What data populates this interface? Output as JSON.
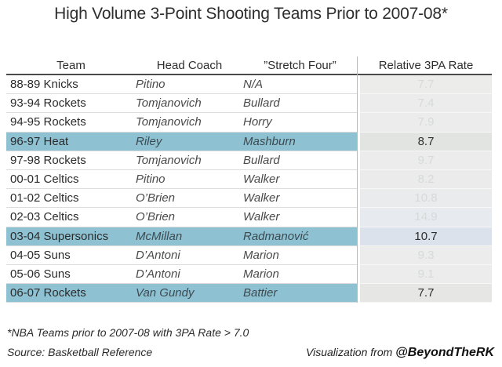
{
  "title": "High Volume 3-Point Shooting Teams Prior to 2007-08*",
  "chart_data": {
    "type": "table",
    "title": "High Volume 3-Point Shooting Teams Prior to 2007-08*",
    "columns": [
      "Team",
      "Head Coach",
      "”Stretch Four”",
      "Relative 3PA Rate"
    ],
    "rows": [
      {
        "team": "88-89 Knicks",
        "coach": "Pitino",
        "stretch_four": "N/A",
        "rate": "7.7",
        "highlighted": false,
        "rate_bg": "#ecedeb"
      },
      {
        "team": "93-94 Rockets",
        "coach": "Tomjanovich",
        "stretch_four": "Bullard",
        "rate": "7.4",
        "highlighted": false,
        "rate_bg": "#ebeceb"
      },
      {
        "team": "94-95 Rockets",
        "coach": "Tomjanovich",
        "stretch_four": "Horry",
        "rate": "7.9",
        "highlighted": false,
        "rate_bg": "#ebeceb"
      },
      {
        "team": "96-97 Heat",
        "coach": "Riley",
        "stretch_four": "Mashburn",
        "rate": "8.7",
        "highlighted": true,
        "rate_bg": "#e2e4e2"
      },
      {
        "team": "97-98 Rockets",
        "coach": "Tomjanovich",
        "stretch_four": "Bullard",
        "rate": "9.7",
        "highlighted": false,
        "rate_bg": "#ebeceb"
      },
      {
        "team": "00-01 Celtics",
        "coach": "Pitino",
        "stretch_four": "Walker",
        "rate": "8.2",
        "highlighted": false,
        "rate_bg": "#eaebea"
      },
      {
        "team": "01-02 Celtics",
        "coach": "O’Brien",
        "stretch_four": "Walker",
        "rate": "10.8",
        "highlighted": false,
        "rate_bg": "#eaebec"
      },
      {
        "team": "02-03 Celtics",
        "coach": "O’Brien",
        "stretch_four": "Walker",
        "rate": "14.9",
        "highlighted": false,
        "rate_bg": "#e7eaee"
      },
      {
        "team": "03-04 Supersonics",
        "coach": "McMillan",
        "stretch_four": "Radmanović",
        "rate": "10.7",
        "highlighted": true,
        "rate_bg": "#dbe2ec"
      },
      {
        "team": "04-05 Suns",
        "coach": "D’Antoni",
        "stretch_four": "Marion",
        "rate": "9.3",
        "highlighted": false,
        "rate_bg": "#ebeceb"
      },
      {
        "team": "05-06 Suns",
        "coach": "D’Antoni",
        "stretch_four": "Marion",
        "rate": "9.1",
        "highlighted": false,
        "rate_bg": "#ebeceb"
      },
      {
        "team": "06-07 Rockets",
        "coach": "Van Gundy",
        "stretch_four": "Battier",
        "rate": "7.7",
        "highlighted": true,
        "rate_bg": "#e6e7e5"
      }
    ],
    "highlighted_row_indexes": [
      3,
      8,
      11
    ],
    "legend_position": "none",
    "grid": "row-dividers"
  },
  "footnote": "*NBA Teams prior to 2007-08 with 3PA Rate > 7.0",
  "source": "Source: Basketball Reference",
  "credit": {
    "prefix": "Visualization from ",
    "handle": "@BeyondTheRK"
  },
  "colors": {
    "highlight": "#8ec2d3",
    "header_underline": "#4a4a4a",
    "row_divider": "#dcdcdc",
    "rate_row_divider": "#f7f7f6",
    "column_divider": "#b9b9b9",
    "muted_rate_text": "#d6dad9",
    "dark_text": "#2e2e2e",
    "team_text": "#2b2b2b",
    "coach_text": "#4a4a4a"
  }
}
